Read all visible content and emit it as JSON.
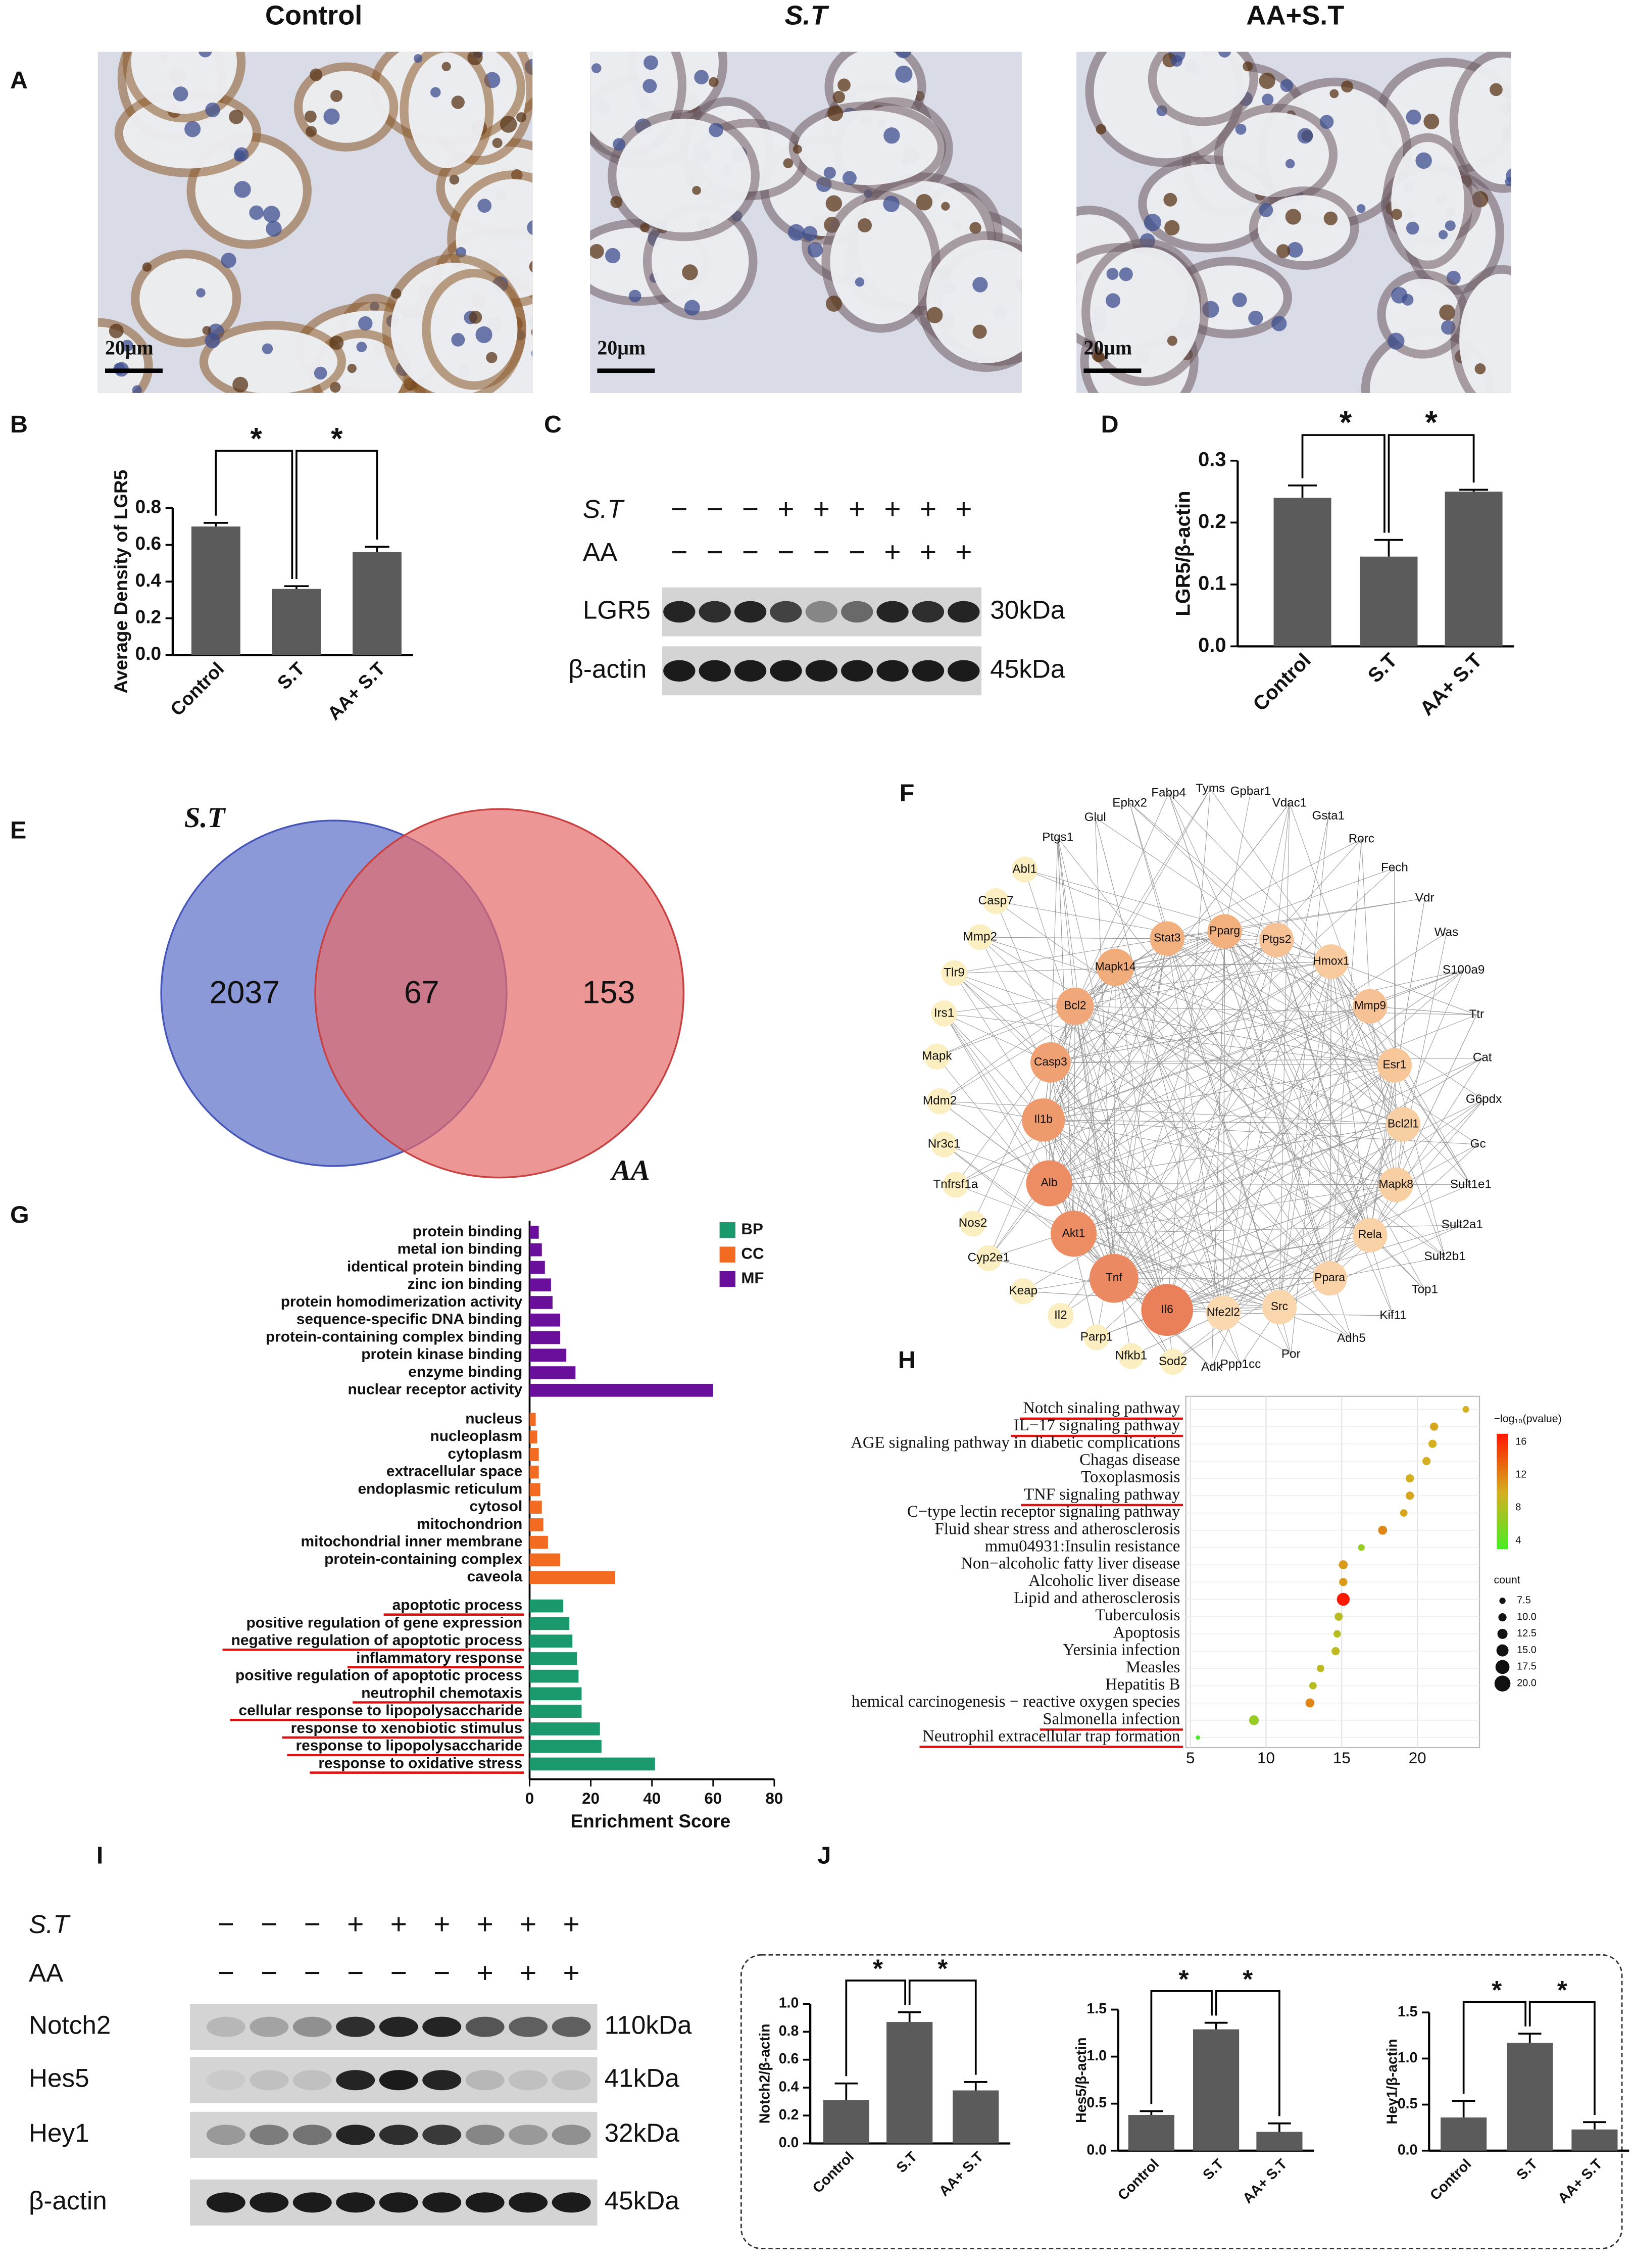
{
  "panel_labels": [
    "A",
    "B",
    "C",
    "D",
    "E",
    "F",
    "G",
    "H",
    "I",
    "J"
  ],
  "micrographs": {
    "titles": [
      "Control",
      "S.T",
      "AA+S.T"
    ],
    "scale_bars": [
      "20μm",
      "20μm",
      "20μm"
    ]
  },
  "blot_c": {
    "rows": [
      {
        "label": "S.T",
        "signs": [
          "−",
          "−",
          "−",
          "+",
          "+",
          "+",
          "+",
          "+",
          "+"
        ]
      },
      {
        "label": "AA",
        "signs": [
          "−",
          "−",
          "−",
          "−",
          "−",
          "−",
          "+",
          "+",
          "+"
        ]
      }
    ],
    "bands": [
      {
        "label": "LGR5",
        "size": "30kDa"
      },
      {
        "label": "β-actin",
        "size": "45kDa"
      }
    ]
  },
  "blot_i": {
    "rows": [
      {
        "label": "S.T",
        "signs": [
          "−",
          "−",
          "−",
          "+",
          "+",
          "+",
          "+",
          "+",
          "+"
        ]
      },
      {
        "label": "AA",
        "signs": [
          "−",
          "−",
          "−",
          "−",
          "−",
          "−",
          "+",
          "+",
          "+"
        ]
      }
    ],
    "bands": [
      {
        "label": "Notch2",
        "size": "110kDa"
      },
      {
        "label": "Hes5",
        "size": "41kDa"
      },
      {
        "label": "Hey1",
        "size": "32kDa"
      },
      {
        "label": "β-actin",
        "size": "45kDa"
      }
    ]
  },
  "venn": {
    "sets": [
      "S.T",
      "AA"
    ],
    "counts": [
      2037,
      67,
      153
    ]
  },
  "network": {
    "nodes": [
      "Fabp4",
      "Tyms",
      "Gpbar1",
      "Vdac1",
      "Gsta1",
      "Ephx2",
      "Glul",
      "Ptgs1",
      "Rorc",
      "Fech",
      "Vdr",
      "Was",
      "S100a9",
      "Ttr",
      "Cat",
      "G6pdx",
      "Gc",
      "Sult1e1",
      "Sult2a1",
      "Sult2b1",
      "Top1",
      "Kif11",
      "Adh5",
      "Por",
      "Ppp1cc",
      "Adk",
      "Abl1",
      "Casp7",
      "Mmp2",
      "Tlr9",
      "Irs1",
      "Mapk",
      "Mdm2",
      "Nr3c1",
      "Tnfrsf1a",
      "Nos2",
      "Cyp2e1",
      "Keap",
      "Il2",
      "Parp1",
      "Nfkb1",
      "Sod2",
      "Stat3",
      "Pparg",
      "Ptgs2",
      "Hmox1",
      "Mmp9",
      "Esr1",
      "Bcl2l1",
      "Mapk8",
      "Rela",
      "Ppara",
      "Src",
      "Nfe2l2",
      "Il6",
      "Tnf",
      "Akt1",
      "Alb",
      "Il1b",
      "Casp3",
      "Bcl2",
      "Mapk14"
    ]
  },
  "chart_data": [
    {
      "type": "bar",
      "ylabel": "Average Density of LGR5",
      "categories": [
        "Control",
        "S.T",
        "AA+ S.T"
      ],
      "values": [
        0.7,
        0.36,
        0.56
      ],
      "errors": [
        0.02,
        0.015,
        0.03
      ],
      "color": "#5b5b5b",
      "ylim": [
        0,
        0.8
      ],
      "yticks": [
        {
          "value": 0,
          "label": "0.0"
        },
        0.2,
        0.4,
        0.6,
        0.8
      ],
      "annotations": [
        "*",
        "*"
      ]
    },
    {
      "type": "bar",
      "ylabel": "LGR5/β-actin",
      "categories": [
        "Control",
        "S.T",
        "AA+ S.T"
      ],
      "values": [
        0.24,
        0.145,
        0.25
      ],
      "errors": [
        0.02,
        0.027,
        0.003
      ],
      "color": "#5b5b5b",
      "ylim": [
        0,
        0.3
      ],
      "yticks": [
        {
          "value": 0,
          "label": "0.0"
        },
        0.1,
        0.2,
        0.3
      ],
      "annotations": [
        "*",
        "*"
      ]
    },
    {
      "type": "hbar",
      "xlabel": "Enrichment Score",
      "xlim": [
        0,
        80
      ],
      "xticks": [
        0,
        20,
        40,
        60,
        80
      ],
      "series": [
        {
          "name": "BP",
          "color": "#1a9a6c",
          "categories": [
            "apoptotic process",
            "positive regulation of gene expression",
            "negative regulation of apoptotic process",
            "inflammatory response",
            "positive regulation of apoptotic process",
            "neutrophil chemotaxis",
            "cellular response to lipopolysaccharide",
            "response to xenobiotic stimulus",
            "response to lipopolysaccharide",
            "response to oxidative stress"
          ],
          "values": [
            11,
            13,
            14,
            15.5,
            16,
            17,
            17,
            23,
            23.5,
            41
          ],
          "underline": [
            true,
            false,
            true,
            true,
            false,
            true,
            true,
            true,
            true,
            true
          ]
        },
        {
          "name": "CC",
          "color": "#f26b21",
          "categories": [
            "nucleus",
            "nucleoplasm",
            "cytoplasm",
            "extracellular space",
            "endoplasmic reticulum",
            "cytosol",
            "mitochondrion",
            "mitochondrial inner membrane",
            "protein-containing complex",
            "caveola"
          ],
          "values": [
            2,
            2.5,
            3,
            3,
            3.5,
            4,
            4.5,
            6,
            10,
            28
          ],
          "underline": [
            false,
            false,
            false,
            false,
            false,
            false,
            false,
            false,
            false,
            false
          ]
        },
        {
          "name": "MF",
          "color": "#6a0f9b",
          "categories": [
            "protein binding",
            "metal ion binding",
            "identical protein binding",
            "zinc ion binding",
            "protein homodimerization activity",
            "sequence-specific DNA binding",
            "protein-containing complex binding",
            "protein kinase binding",
            "enzyme binding",
            "nuclear receptor activity"
          ],
          "values": [
            3,
            4,
            5,
            7,
            7.5,
            10,
            10,
            12,
            15,
            60
          ],
          "underline": [
            false,
            false,
            false,
            false,
            false,
            false,
            false,
            false,
            false,
            false
          ]
        }
      ]
    },
    {
      "type": "dot",
      "categories": [
        "Notch sinaling pathway",
        "IL−17 signaling pathway",
        "AGE signaling pathway in diabetic complications",
        "Chagas disease",
        "Toxoplasmosis",
        "TNF signaling pathway",
        "C−type lectin receptor signaling pathway",
        "Fluid shear stress and atherosclerosis",
        "mmu04931:Insulin resistance",
        "Non−alcoholic fatty liver disease",
        "Alcoholic liver disease",
        "Lipid and atherosclerosis",
        "Tuberculosis",
        "Apoptosis",
        "Yersinia infection",
        "Measles",
        "Hepatitis B",
        "hemical carcinogenesis − reactive oxygen species",
        "Salmonella infection",
        "Neutrophil extracellular trap formation"
      ],
      "values": [
        23.2,
        21.1,
        21.0,
        20.6,
        19.5,
        19.5,
        19.1,
        17.7,
        16.3,
        15.1,
        15.1,
        15.1,
        14.8,
        14.7,
        14.6,
        13.6,
        13.1,
        12.9,
        9.2,
        5.5
      ],
      "pvalues": [
        10,
        10.5,
        10,
        10,
        10,
        10.5,
        10.5,
        12,
        7,
        11,
        11,
        17,
        8.5,
        8.5,
        9,
        9,
        8.5,
        12,
        7,
        3
      ],
      "counts": [
        8,
        10,
        10,
        10,
        10,
        10,
        9,
        11,
        8,
        11,
        10,
        16,
        10,
        9,
        10,
        9,
        9,
        11,
        12,
        5
      ],
      "underline": [
        true,
        true,
        false,
        false,
        false,
        true,
        false,
        false,
        false,
        false,
        false,
        false,
        false,
        false,
        false,
        false,
        false,
        false,
        true,
        true
      ],
      "xlim": [
        4.7,
        24.1
      ],
      "xticks": [
        5,
        10,
        15,
        20
      ],
      "color_title": "−log₁₀(pvalue)",
      "color_lim": [
        3,
        17
      ],
      "color_ticks": [
        4,
        8,
        12,
        16
      ],
      "size_title": "count",
      "size_ticks": [
        7.5,
        {
          "value": 10,
          "label": "10.0"
        },
        12.5,
        {
          "value": 15,
          "label": "15.0"
        },
        17.5,
        {
          "value": 20,
          "label": "20.0"
        }
      ]
    },
    {
      "type": "bar",
      "ylabel": "Notch2/β-actin",
      "categories": [
        "Control",
        "S.T",
        "AA+ S.T"
      ],
      "values": [
        0.31,
        0.87,
        0.38
      ],
      "errors": [
        0.12,
        0.07,
        0.06
      ],
      "color": "#5b5b5b",
      "ylim": [
        0,
        1.0
      ],
      "yticks": [
        {
          "value": 0,
          "label": "0.0"
        },
        0.2,
        0.4,
        0.6,
        0.8,
        {
          "value": 1,
          "label": "1.0"
        }
      ],
      "annotations": [
        "*",
        "*"
      ]
    },
    {
      "type": "bar",
      "ylabel": "Hes5/β-actin",
      "categories": [
        "Control",
        "S.T",
        "AA+ S.T"
      ],
      "values": [
        0.38,
        1.29,
        0.2
      ],
      "errors": [
        0.04,
        0.07,
        0.09
      ],
      "color": "#5b5b5b",
      "ylim": [
        0,
        1.5
      ],
      "yticks": [
        {
          "value": 0,
          "label": "0.0"
        },
        0.5,
        {
          "value": 1,
          "label": "1.0"
        },
        1.5
      ],
      "annotations": [
        "*",
        "*"
      ]
    },
    {
      "type": "bar",
      "ylabel": "Hey1/β-actin",
      "categories": [
        "Control",
        "S.T",
        "AA+ S.T"
      ],
      "values": [
        0.36,
        1.17,
        0.23
      ],
      "errors": [
        0.18,
        0.1,
        0.08
      ],
      "color": "#5b5b5b",
      "ylim": [
        0,
        1.5
      ],
      "yticks": [
        {
          "value": 0,
          "label": "0.0"
        },
        0.5,
        {
          "value": 1,
          "label": "1.0"
        },
        1.5
      ],
      "annotations": [
        "*",
        "*"
      ]
    }
  ]
}
